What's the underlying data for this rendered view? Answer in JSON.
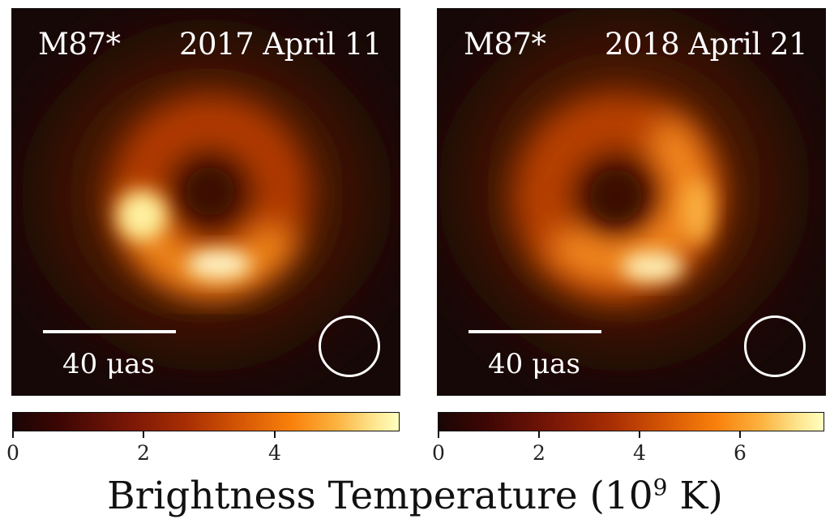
{
  "panels": [
    {
      "source": "M87*",
      "date": "2017 April 11",
      "scale_label": "40 μas",
      "colorbar": {
        "min": 0,
        "max": 5.9,
        "ticks": [
          "0",
          "2",
          "4"
        ]
      }
    },
    {
      "source": "M87*",
      "date": "2018 April 21",
      "scale_label": "40 μas",
      "colorbar": {
        "min": 0,
        "max": 7.7,
        "ticks": [
          "0",
          "2",
          "4",
          "6"
        ]
      }
    }
  ],
  "colorbar_label": {
    "text": "Brightness Temperature (10",
    "exponent": "9",
    "unit": " K)"
  },
  "colormap": "afmhot",
  "colors": {
    "background": "#150806",
    "ring_mid": "#e86a10",
    "ring_peak": "#ffffd0"
  }
}
